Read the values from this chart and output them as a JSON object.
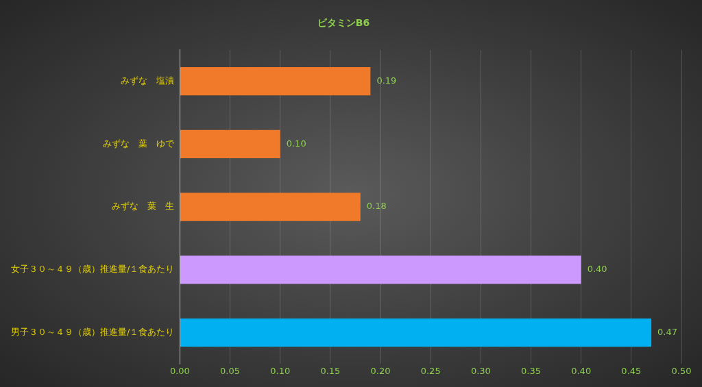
{
  "chart_data": {
    "type": "bar",
    "orientation": "horizontal",
    "title": "ビタミンB6",
    "categories": [
      "みずな　塩漬",
      "みずな　葉　ゆで",
      "みずな　葉　生",
      "女子３０～４９（歳）推進量/１食あたり",
      "男子３０～４９（歳）推進量/１食あたり"
    ],
    "values": [
      0.19,
      0.1,
      0.18,
      0.4,
      0.47
    ],
    "colors": [
      "#f07a2a",
      "#f07a2a",
      "#f07a2a",
      "#cc99ff",
      "#00b0f0"
    ],
    "value_labels": [
      "0.19",
      "0.10",
      "0.18",
      "0.40",
      "0.47"
    ],
    "xlim": [
      0,
      0.5
    ],
    "xticks": [
      {
        "value": 0,
        "label": "0.00"
      },
      {
        "value": 0.05,
        "label": "0.05"
      },
      {
        "value": 0.1,
        "label": "0.10"
      },
      {
        "value": 0.15,
        "label": "0.15"
      },
      {
        "value": 0.2,
        "label": "0.20"
      },
      {
        "value": 0.25,
        "label": "0.25"
      },
      {
        "value": 0.3,
        "label": "0.30"
      },
      {
        "value": 0.35,
        "label": "0.35"
      },
      {
        "value": 0.4,
        "label": "0.40"
      },
      {
        "value": 0.45,
        "label": "0.45"
      },
      {
        "value": 0.5,
        "label": "0.50"
      }
    ],
    "grid": "x",
    "legend": false
  }
}
